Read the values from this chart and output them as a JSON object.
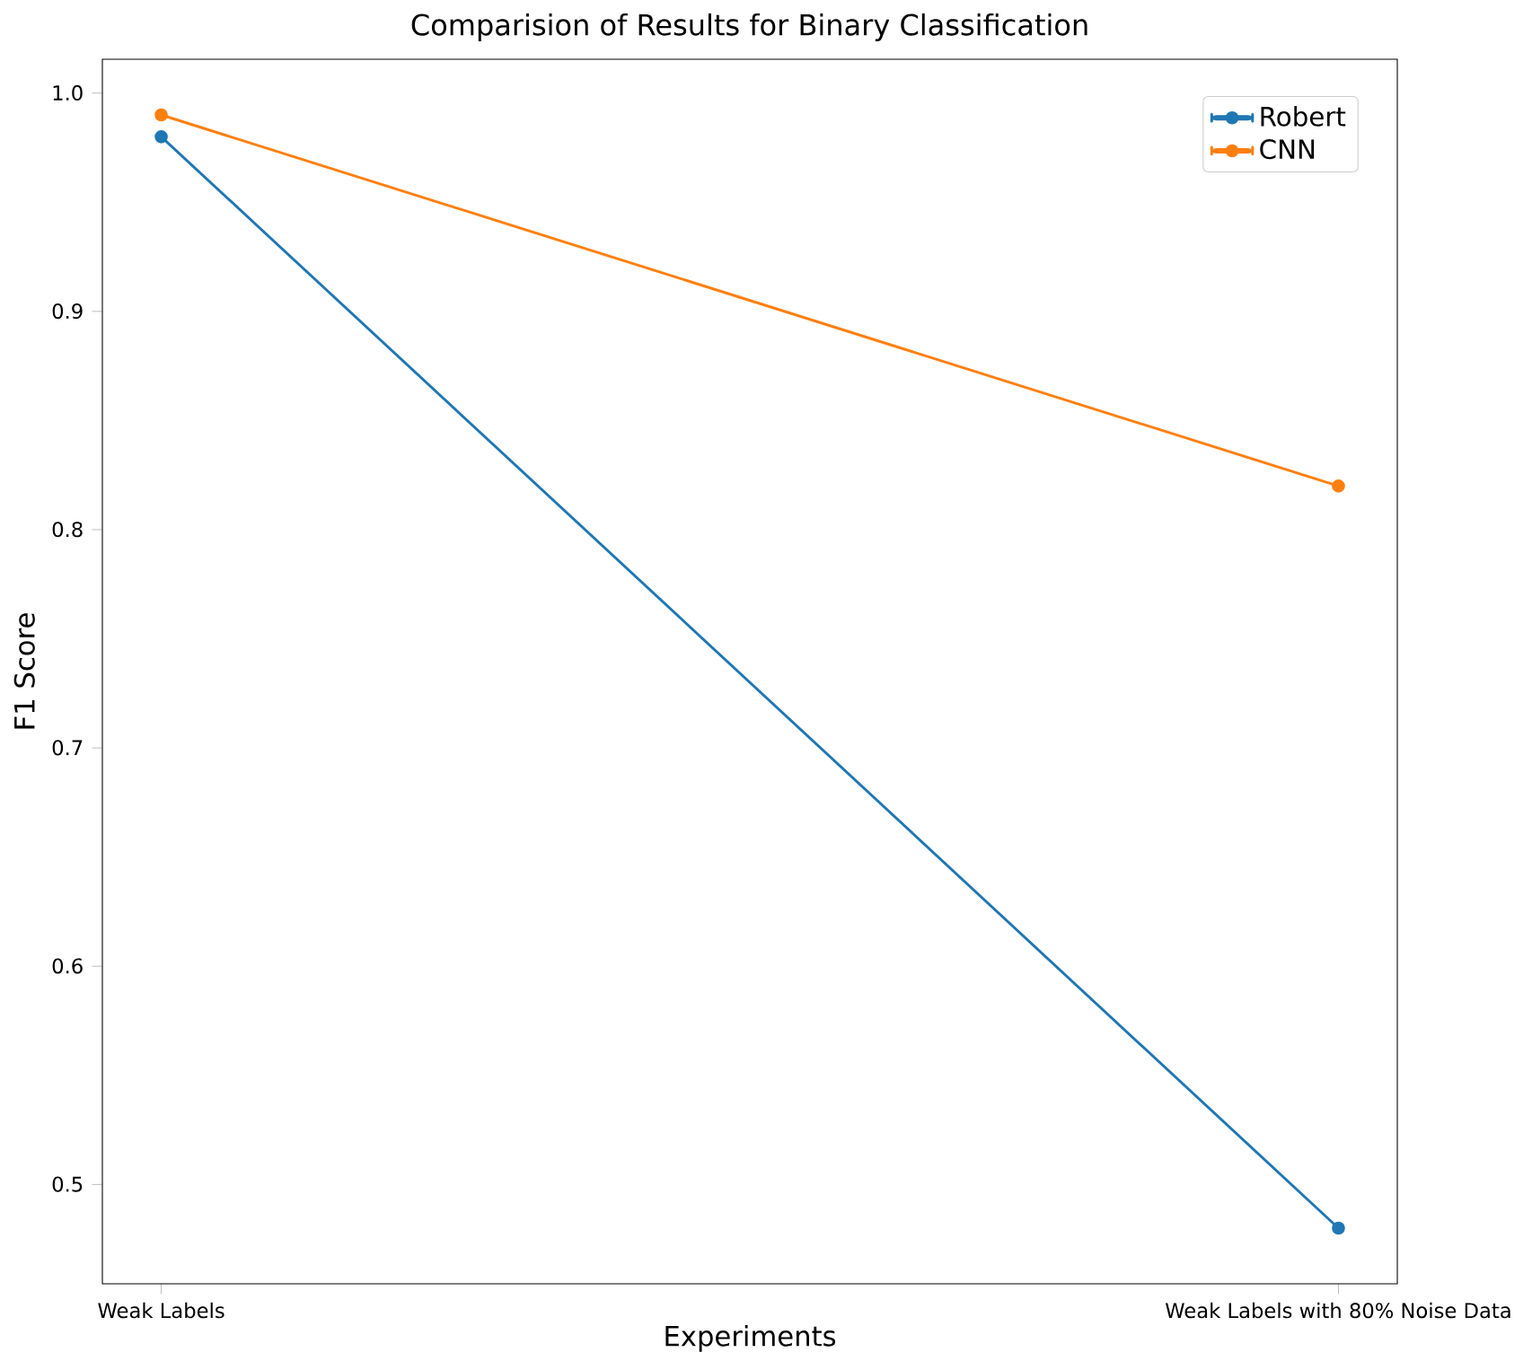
{
  "chart_data": {
    "type": "line",
    "title": "Comparision of Results for Binary Classification",
    "xlabel": "Experiments",
    "ylabel": "F1 Score",
    "categories": [
      "Weak Labels",
      "Weak Labels with 80% Noise Data"
    ],
    "series": [
      {
        "name": "Robert",
        "color": "#1f77b4",
        "values": [
          0.98,
          0.48
        ]
      },
      {
        "name": "CNN",
        "color": "#ff7f0e",
        "values": [
          0.99,
          0.82
        ]
      }
    ],
    "ylim": [
      0.4545,
      1.0155
    ],
    "yticks": [
      0.5,
      0.6,
      0.7,
      0.8,
      0.9,
      {
        "value": 1.0,
        "label": "1.0"
      }
    ],
    "marker": "circle",
    "legend": "top right",
    "grid": false
  }
}
